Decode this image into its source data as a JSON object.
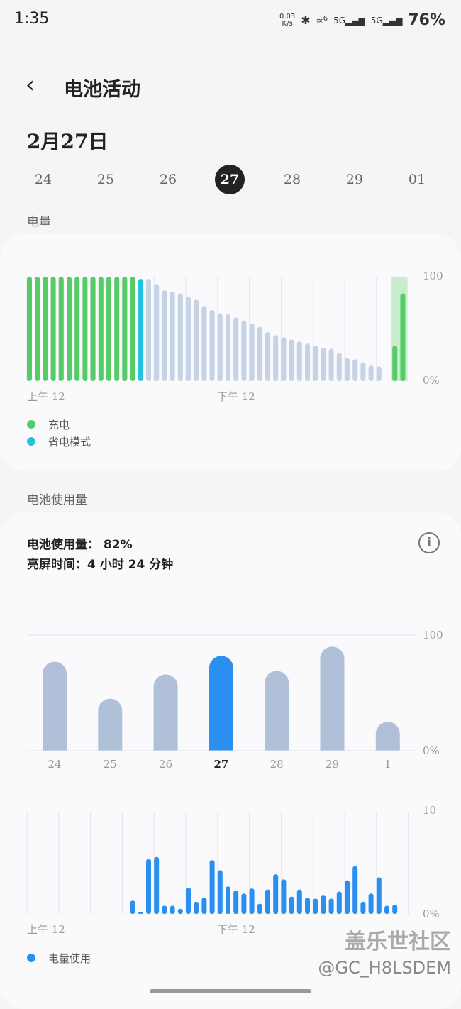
{
  "status": {
    "time": "1:35",
    "net_speed": "0.03",
    "net_unit": "K/s",
    "wifi": "6",
    "sim1": "5G",
    "sim2": "5G",
    "battery": "76%"
  },
  "header": {
    "title": "电池活动",
    "date": "2月27日"
  },
  "days": [
    {
      "label": "24"
    },
    {
      "label": "25"
    },
    {
      "label": "26"
    },
    {
      "label": "27",
      "selected": true
    },
    {
      "label": "28"
    },
    {
      "label": "29"
    },
    {
      "label": "01"
    }
  ],
  "section_level": "电量",
  "section_usage": "电池使用量",
  "colors": {
    "charging": "#55cc66",
    "saving": "#22c4dd",
    "discharge": "#c6d3e6",
    "usage": "#2a8ff0",
    "day_bar": "#b1c0d9"
  },
  "chart_data": [
    {
      "type": "bar",
      "ylim": [
        0,
        100
      ],
      "ytick_labels": [
        "100",
        "0%"
      ],
      "xtick_labels": [
        "上午 12",
        "下午 12"
      ],
      "values": [
        100,
        100,
        100,
        100,
        100,
        100,
        100,
        100,
        100,
        100,
        100,
        100,
        100,
        100,
        98,
        98,
        93,
        87,
        86,
        84,
        81,
        78,
        72,
        68,
        65,
        64,
        61,
        58,
        55,
        52,
        47,
        44,
        42,
        40,
        38,
        36,
        34,
        32,
        31,
        27,
        22,
        21,
        18,
        15,
        14,
        0,
        34,
        84
      ],
      "state": [
        "c",
        "c",
        "c",
        "c",
        "c",
        "c",
        "c",
        "c",
        "c",
        "c",
        "c",
        "c",
        "c",
        "c",
        "s",
        "d",
        "d",
        "d",
        "d",
        "d",
        "d",
        "d",
        "d",
        "d",
        "d",
        "d",
        "d",
        "d",
        "d",
        "d",
        "d",
        "d",
        "d",
        "d",
        "d",
        "d",
        "d",
        "d",
        "d",
        "d",
        "d",
        "d",
        "d",
        "d",
        "d",
        "d",
        "c",
        "c"
      ],
      "legend": [
        {
          "label": "充电",
          "color": "#55cc66"
        },
        {
          "label": "省电模式",
          "color": "#22c4dd"
        }
      ]
    },
    {
      "type": "bar",
      "ylim": [
        0,
        100
      ],
      "ytick_labels": [
        "100",
        "0%"
      ],
      "categories": [
        "24",
        "25",
        "26",
        "27",
        "28",
        "29",
        "1"
      ],
      "values": [
        77,
        45,
        66,
        82,
        69,
        90,
        25
      ],
      "highlight": "27"
    },
    {
      "type": "bar",
      "ylim": [
        0,
        10
      ],
      "ytick_labels": [
        "10",
        "0%"
      ],
      "xtick_labels": [
        "上午 12",
        "下午 12"
      ],
      "values": [
        0,
        0,
        0,
        0,
        0,
        0,
        0,
        0,
        0,
        0,
        0,
        0,
        0,
        1.3,
        0.2,
        5.4,
        5.6,
        0.8,
        0.8,
        0.5,
        2.6,
        1.2,
        1.6,
        5.3,
        4.3,
        2.7,
        2.3,
        2.0,
        2.5,
        1.0,
        2.4,
        3.9,
        3.4,
        1.7,
        2.4,
        1.6,
        1.5,
        1.8,
        1.5,
        2.2,
        3.3,
        4.7,
        1.2,
        2.0,
        3.6,
        0.8,
        0.9,
        0
      ],
      "legend": [
        {
          "label": "电量使用",
          "color": "#2a8ff0"
        }
      ]
    }
  ],
  "summary": {
    "usage": "电池使用量： 82%",
    "screen_time": "亮屏时间：4 小时 24 分钟"
  },
  "watermark": {
    "line1": "盖乐世社区",
    "line2": "@GC_H8LSDEM"
  }
}
